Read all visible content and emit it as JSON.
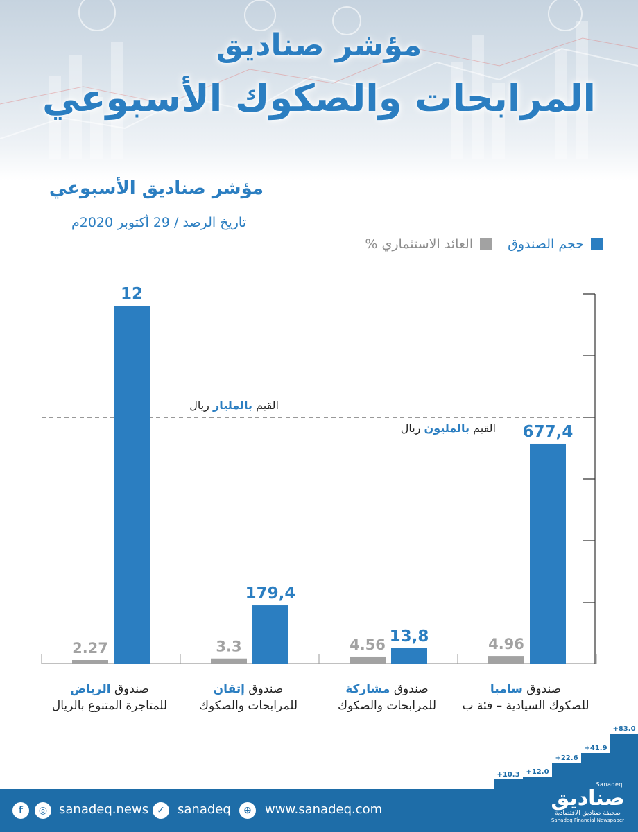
{
  "header": {
    "title_line1": "مؤشر صناديق",
    "title_line2": "المرابحات والصكوك الأسبوعي"
  },
  "subheader": {
    "title": "مؤشر صناديق الأسبوعي",
    "date": "تاريخ الرصد / 29 أكتوبر 2020م"
  },
  "legend": {
    "size_label": "حجم الصندوق",
    "return_label": "العائد الاستثماري %"
  },
  "scale_notes": {
    "billion_prefix": "القيم",
    "billion_highlight": "بالمليار",
    "billion_suffix": "ريال",
    "million_prefix": "القيم",
    "million_highlight": "بالمليون",
    "million_suffix": "ريال"
  },
  "colors": {
    "size": "#2b7ec1",
    "return": "#a2a2a2",
    "footer": "#1e6da8"
  },
  "chart_data": {
    "type": "bar",
    "title": "مؤشر صناديق الأسبوعي",
    "categories": [
      {
        "prefix": "صندوق",
        "name": "الرياض",
        "line2": "للمتاجرة المتنوع بالريال"
      },
      {
        "prefix": "صندوق",
        "name": "إتقان",
        "line2": "للمرابحات والصكوك"
      },
      {
        "prefix": "صندوق",
        "name": "مشاركة",
        "line2": "للمرابحات والصكوك"
      },
      {
        "prefix": "صندوق",
        "name": "سامبا",
        "line2": "للصكوك السيادية – فئة ب"
      }
    ],
    "series": [
      {
        "name": "العائد الاستثماري %",
        "values": [
          2.27,
          3.3,
          4.56,
          4.96
        ],
        "labels": [
          "2.27",
          "3.3",
          "4.56",
          "4.96"
        ]
      },
      {
        "name": "حجم الصندوق",
        "values": [
          12,
          179.4,
          13.8,
          677.4
        ],
        "labels": [
          "12",
          "179,4",
          "13,8",
          "677,4"
        ],
        "units": [
          "مليار ريال",
          "مليون ريال",
          "مليون ريال",
          "مليون ريال"
        ]
      }
    ],
    "legend_position": "top-right",
    "grid": false
  },
  "footer": {
    "social_handle": "sanadeq.news",
    "twitter_handle": "sanadeq",
    "website": "www.sanadeq.com",
    "facebook_icon": "f",
    "instagram_icon": "◎",
    "twitter_icon": "✓",
    "globe_icon": "⊕"
  },
  "brand": {
    "name_en": "Sanadeq",
    "name_ar": "صناديق",
    "tagline_ar": "صحيفة صناديق الاقتصادية",
    "tagline_en": "Sanadeq Financial Newspaper"
  },
  "stair_labels": [
    "+10.3",
    "+12.0",
    "+22.6",
    "+41.9",
    "+83.0"
  ]
}
